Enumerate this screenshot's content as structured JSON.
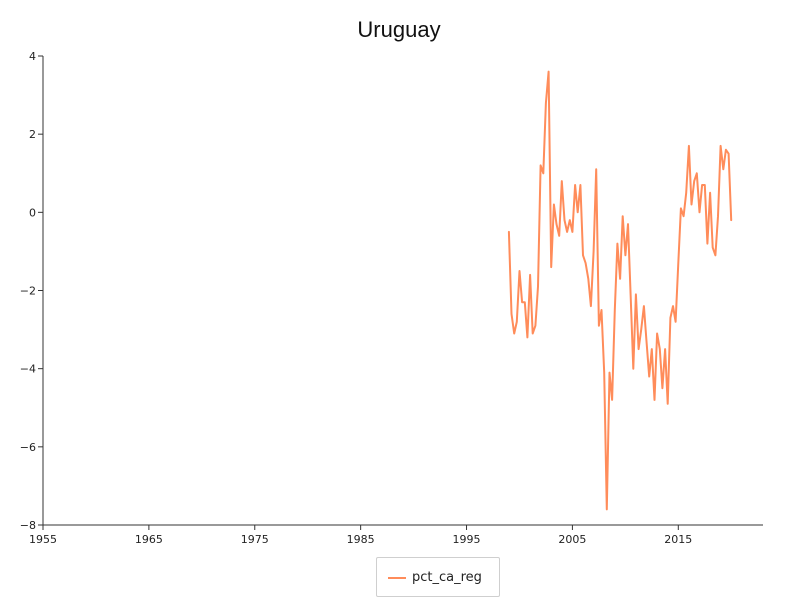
{
  "chart_data": {
    "type": "line",
    "title": "Uruguay",
    "xlabel": "",
    "ylabel": "",
    "xlim": [
      1955,
      2023
    ],
    "ylim": [
      -8,
      4
    ],
    "x_ticks": [
      1955,
      1965,
      1975,
      1985,
      1995,
      2005,
      2015
    ],
    "y_ticks": [
      4,
      2,
      0,
      -2,
      -4,
      -6,
      -8
    ],
    "grid": false,
    "legend_position": "bottom-center",
    "series": [
      {
        "name": "pct_ca_reg",
        "color": "#ff8c5a",
        "x": [
          1999.0,
          1999.25,
          1999.5,
          1999.75,
          2000.0,
          2000.25,
          2000.5,
          2000.75,
          2001.0,
          2001.25,
          2001.5,
          2001.75,
          2002.0,
          2002.25,
          2002.5,
          2002.75,
          2003.0,
          2003.25,
          2003.5,
          2003.75,
          2004.0,
          2004.25,
          2004.5,
          2004.75,
          2005.0,
          2005.25,
          2005.5,
          2005.75,
          2006.0,
          2006.25,
          2006.5,
          2006.75,
          2007.0,
          2007.25,
          2007.5,
          2007.75,
          2008.0,
          2008.25,
          2008.5,
          2008.75,
          2009.0,
          2009.25,
          2009.5,
          2009.75,
          2010.0,
          2010.25,
          2010.5,
          2010.75,
          2011.0,
          2011.25,
          2011.5,
          2011.75,
          2012.0,
          2012.25,
          2012.5,
          2012.75,
          2013.0,
          2013.25,
          2013.5,
          2013.75,
          2014.0,
          2014.25,
          2014.5,
          2014.75,
          2015.0,
          2015.25,
          2015.5,
          2015.75,
          2016.0,
          2016.25,
          2016.5,
          2016.75,
          2017.0,
          2017.25,
          2017.5,
          2017.75,
          2018.0,
          2018.25,
          2018.5,
          2018.75,
          2019.0,
          2019.25,
          2019.5,
          2019.75,
          2020.0
        ],
        "values": [
          -0.5,
          -2.6,
          -3.1,
          -2.8,
          -1.5,
          -2.3,
          -2.3,
          -3.2,
          -1.6,
          -3.1,
          -2.9,
          -1.9,
          1.2,
          1.0,
          2.8,
          3.6,
          -1.4,
          0.2,
          -0.3,
          -0.6,
          0.8,
          -0.2,
          -0.5,
          -0.2,
          -0.5,
          0.7,
          0.0,
          0.7,
          -1.1,
          -1.3,
          -1.7,
          -2.4,
          -1.0,
          1.1,
          -2.9,
          -2.5,
          -4.1,
          -7.6,
          -4.1,
          -4.8,
          -2.5,
          -0.8,
          -1.7,
          -0.1,
          -1.1,
          -0.3,
          -2.1,
          -4.0,
          -2.1,
          -3.5,
          -3.0,
          -2.4,
          -3.3,
          -4.2,
          -3.5,
          -4.8,
          -3.1,
          -3.5,
          -4.5,
          -3.5,
          -4.9,
          -2.7,
          -2.4,
          -2.8,
          -1.3,
          0.1,
          -0.1,
          0.5,
          1.7,
          0.2,
          0.8,
          1.0,
          0.0,
          0.7,
          0.7,
          -0.8,
          0.5,
          -0.9,
          -1.1,
          -0.1,
          1.7,
          1.1,
          1.6,
          1.5,
          -0.2
        ]
      }
    ]
  }
}
